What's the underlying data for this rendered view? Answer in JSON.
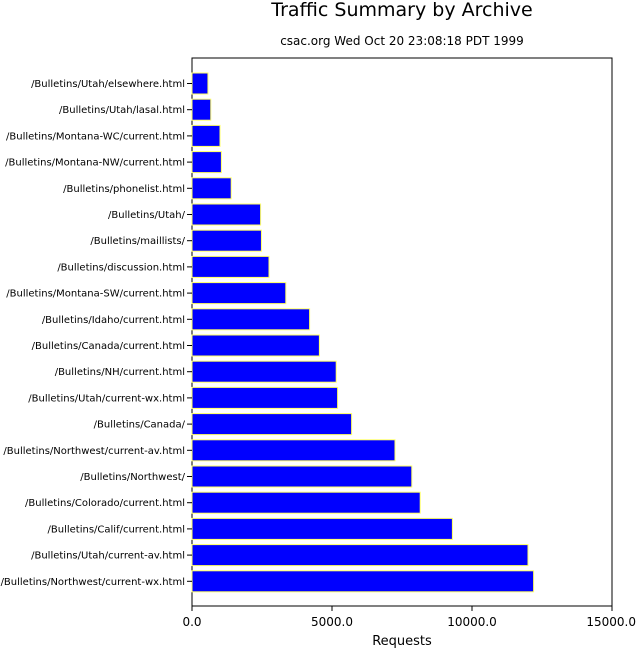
{
  "chart_data": {
    "type": "bar",
    "orientation": "horizontal",
    "title": "Traffic Summary by Archive",
    "subtitle": "csac.org Wed Oct 20 23:08:18 PDT 1999",
    "xlabel": "Requests",
    "ylabel": "",
    "xlim": [
      0,
      15000
    ],
    "xticks": [
      0,
      5000,
      10000,
      15000
    ],
    "xtick_labels": [
      "0.0",
      "5000.0",
      "10000.0",
      "15000.0"
    ],
    "grid": false,
    "legend": "none",
    "bar_color": "#0000ff",
    "bar_edge_color": "#ffff66",
    "categories": [
      "/Bulletins/Utah/elsewhere.html",
      "/Bulletins/Utah/lasal.html",
      "/Bulletins/Montana-WC/current.html",
      "/Bulletins/Montana-NW/current.html",
      "/Bulletins/phonelist.html",
      "/Bulletins/Utah/",
      "/Bulletins/maillists/",
      "/Bulletins/discussion.html",
      "/Bulletins/Montana-SW/current.html",
      "/Bulletins/Idaho/current.html",
      "/Bulletins/Canada/current.html",
      "/Bulletins/NH/current.html",
      "/Bulletins/Utah/current-wx.html",
      "/Bulletins/Canada/",
      "/Bulletins/Northwest/current-av.html",
      "/Bulletins/Northwest/",
      "/Bulletins/Colorado/current.html",
      "/Bulletins/Calif/current.html",
      "/Bulletins/Utah/current-av.html",
      "/Bulletins/Northwest/current-wx.html"
    ],
    "values": [
      570,
      670,
      1000,
      1050,
      1400,
      2450,
      2480,
      2750,
      3350,
      4200,
      4550,
      5150,
      5200,
      5700,
      7250,
      7850,
      8150,
      9300,
      12000,
      12200
    ]
  }
}
